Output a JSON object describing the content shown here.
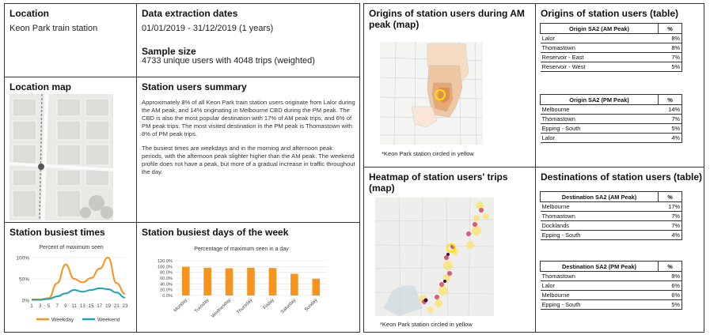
{
  "location": {
    "title": "Location",
    "value": "Keon Park train station"
  },
  "extraction": {
    "title": "Data extraction dates",
    "dates": "01/01/2019 - 31/12/2019 (1 years)",
    "sample_title": "Sample size",
    "sample_value": "4733 unique users with 4048 trips (weighted)"
  },
  "location_map": {
    "title": "Location map"
  },
  "summary": {
    "title": "Station users summary",
    "para1": "Approximately 8% of all Keon Park train station users originate from Lalor during the AM peak, and 14% originating in Melbourne CBD during the PM peak. The CBD is also the most popular destination with 17% of AM peak trips, and 6% of PM peak trips. The most visited destination in the PM peak is Thomastown with 8% of PM peak trips.",
    "para2": "The busiest times are weekdays and in the morning and afternoon peak periods, with the afternoon peak slighter higher than the AM peak. The weekend profile does not have a peak, but more of a gradual increase in traffic throughout the day."
  },
  "busiest_times": {
    "title": "Station busiest times",
    "chart_data": {
      "type": "line",
      "title": "Percent of maximum seen",
      "x": [
        1,
        3,
        5,
        7,
        9,
        11,
        13,
        15,
        17,
        19,
        21,
        23
      ],
      "x_ticks": [
        "1",
        "3",
        "5",
        "7",
        "9",
        "11",
        "13",
        "15",
        "17",
        "19",
        "21",
        "23"
      ],
      "y_ticks": [
        "0%",
        "50%",
        "100%"
      ],
      "ylim": [
        0,
        100
      ],
      "series": [
        {
          "name": "Weekday",
          "color": "#f7941d",
          "values": [
            2,
            2,
            5,
            40,
            84,
            50,
            42,
            52,
            74,
            100,
            40,
            15
          ]
        },
        {
          "name": "Weekend",
          "color": "#1aa3b8",
          "values": [
            1,
            1,
            3,
            9,
            16,
            24,
            20,
            24,
            28,
            26,
            18,
            6
          ]
        }
      ]
    }
  },
  "busiest_days": {
    "title": "Station busiest days of the week",
    "chart_data": {
      "type": "bar",
      "title": "Percentage of maximum seen in a day",
      "categories": [
        "Monday",
        "Tuesday",
        "Wednesday",
        "Thursday",
        "Friday",
        "Saturday",
        "Sunday"
      ],
      "values": [
        99,
        96,
        94,
        96,
        95,
        75,
        58
      ],
      "y_ticks": [
        "0.0%",
        "20.0%",
        "40.0%",
        "60.0%",
        "80.0%",
        "100.0%",
        "120.0%"
      ],
      "ylim": [
        0,
        120
      ],
      "color": "#f7941d"
    }
  },
  "origins_map": {
    "title": "Origins of station users during AM peak (map)",
    "caption": "*Keon Park station circled in yellow"
  },
  "origins_table": {
    "title": "Origins of station users (table)",
    "am": {
      "header": "Origin SA2 (AM Peak)",
      "pct_header": "%",
      "rows": [
        [
          "Lalor",
          "8%"
        ],
        [
          "Thomastown",
          "8%"
        ],
        [
          "Reservoir - East",
          "7%"
        ],
        [
          "Reservoir - West",
          "5%"
        ]
      ]
    },
    "pm": {
      "header": "Origin SA2 (PM Peak)",
      "pct_header": "%",
      "rows": [
        [
          "Melbourne",
          "14%"
        ],
        [
          "Thomastown",
          "7%"
        ],
        [
          "Epping - South",
          "5%"
        ],
        [
          "Lalor",
          "4%"
        ]
      ]
    }
  },
  "heatmap": {
    "title": "Heatmap of station users' trips (map)",
    "caption": "*Keon Park station circled in yellow"
  },
  "dest_table": {
    "title": "Destinations of station users (table)",
    "am": {
      "header": "Destination SA2 (AM Peak)",
      "pct_header": "%",
      "rows": [
        [
          "Melbourne",
          "17%"
        ],
        [
          "Thomastown",
          "7%"
        ],
        [
          "Docklands",
          "7%"
        ],
        [
          "Epping - South",
          "4%"
        ]
      ]
    },
    "pm": {
      "header": "Destination SA2 (PM Peak)",
      "pct_header": "%",
      "rows": [
        [
          "Thomastown",
          "8%"
        ],
        [
          "Lalor",
          "6%"
        ],
        [
          "Melbourne",
          "6%"
        ],
        [
          "Epping - South",
          "5%"
        ]
      ]
    }
  }
}
